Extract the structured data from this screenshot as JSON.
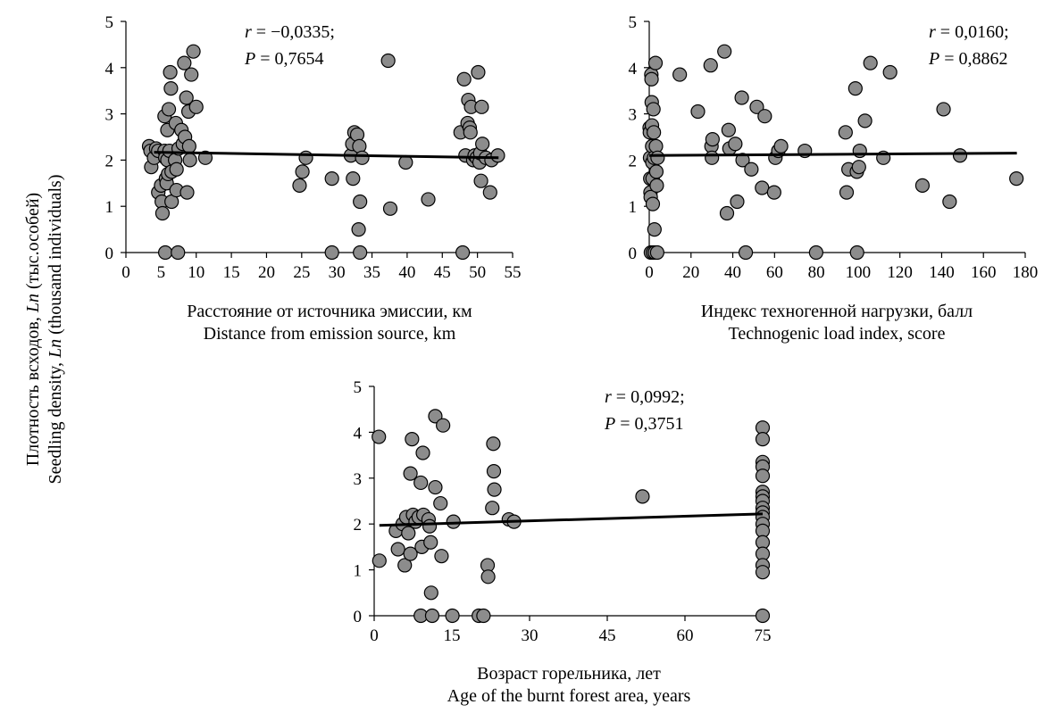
{
  "figure": {
    "shared_ylabel_line1": "Плотность всходов, Ln (тыс.особей)",
    "shared_ylabel_line2": "Seedling density, Ln (thousand individuals)"
  },
  "chart_data": [
    {
      "type": "scatter",
      "xlabel_line1": "Расстояние от источника эмиссии, км",
      "xlabel_line2": "Distance from emission source, km",
      "stat_r": "r = −0,0335;",
      "stat_p": "P = 0,7654",
      "xlim": [
        0,
        55
      ],
      "ylim": [
        0,
        5
      ],
      "xticks": [
        0,
        5,
        10,
        15,
        20,
        25,
        30,
        35,
        40,
        45,
        50,
        55
      ],
      "yticks": [
        0,
        1,
        2,
        3,
        4,
        5
      ],
      "trend": {
        "x": [
          4,
          53
        ],
        "y": [
          2.17,
          2.05
        ]
      },
      "points": [
        [
          3.3,
          2.3
        ],
        [
          3.5,
          2.2
        ],
        [
          3.6,
          1.85
        ],
        [
          4.0,
          2.05
        ],
        [
          4.3,
          2.25
        ],
        [
          4.6,
          2.2
        ],
        [
          4.6,
          1.3
        ],
        [
          5.0,
          1.45
        ],
        [
          5.1,
          1.1
        ],
        [
          5.2,
          0.85
        ],
        [
          5.5,
          2.2
        ],
        [
          5.5,
          2.95
        ],
        [
          5.6,
          2.05
        ],
        [
          5.7,
          1.6
        ],
        [
          5.8,
          1.5
        ],
        [
          5.9,
          2.0
        ],
        [
          5.9,
          2.65
        ],
        [
          6.0,
          1.7
        ],
        [
          6.1,
          3.1
        ],
        [
          6.2,
          2.2
        ],
        [
          6.3,
          3.9
        ],
        [
          6.4,
          3.55
        ],
        [
          6.5,
          1.75
        ],
        [
          6.5,
          1.1
        ],
        [
          7.0,
          2.0
        ],
        [
          7.1,
          2.8
        ],
        [
          7.2,
          1.8
        ],
        [
          7.2,
          1.35
        ],
        [
          7.5,
          2.25
        ],
        [
          7.9,
          2.65
        ],
        [
          8.1,
          2.35
        ],
        [
          8.3,
          4.1
        ],
        [
          8.4,
          2.5
        ],
        [
          8.6,
          3.35
        ],
        [
          8.7,
          1.3
        ],
        [
          8.9,
          3.05
        ],
        [
          9.0,
          2.3
        ],
        [
          9.1,
          2.0
        ],
        [
          9.3,
          3.85
        ],
        [
          9.6,
          4.35
        ],
        [
          10.0,
          3.15
        ],
        [
          11.3,
          2.05
        ],
        [
          5.6,
          0.0
        ],
        [
          7.4,
          0.0
        ],
        [
          24.7,
          1.45
        ],
        [
          25.1,
          1.75
        ],
        [
          25.6,
          2.05
        ],
        [
          29.3,
          1.6
        ],
        [
          29.3,
          0.0
        ],
        [
          32.0,
          2.1
        ],
        [
          32.2,
          2.35
        ],
        [
          32.3,
          1.6
        ],
        [
          32.5,
          2.6
        ],
        [
          32.9,
          2.55
        ],
        [
          33.1,
          0.5
        ],
        [
          33.2,
          2.3
        ],
        [
          33.3,
          1.1
        ],
        [
          33.3,
          0.0
        ],
        [
          33.6,
          2.05
        ],
        [
          37.3,
          4.15
        ],
        [
          37.6,
          0.95
        ],
        [
          39.8,
          1.95
        ],
        [
          43.0,
          1.15
        ],
        [
          47.6,
          2.6
        ],
        [
          47.9,
          0.0
        ],
        [
          48.1,
          3.75
        ],
        [
          48.3,
          2.1
        ],
        [
          48.6,
          2.8
        ],
        [
          48.7,
          3.3
        ],
        [
          48.9,
          2.7
        ],
        [
          49.0,
          2.6
        ],
        [
          49.1,
          3.15
        ],
        [
          49.4,
          2.0
        ],
        [
          49.6,
          2.1
        ],
        [
          49.9,
          2.05
        ],
        [
          50.1,
          3.9
        ],
        [
          50.3,
          1.95
        ],
        [
          50.4,
          2.15
        ],
        [
          50.5,
          1.55
        ],
        [
          50.6,
          3.15
        ],
        [
          50.7,
          2.35
        ],
        [
          51.2,
          2.05
        ],
        [
          51.8,
          1.3
        ],
        [
          52.0,
          2.0
        ],
        [
          52.9,
          2.1
        ]
      ]
    },
    {
      "type": "scatter",
      "xlabel_line1": "Индекс техногенной нагрузки, балл",
      "xlabel_line2": "Technogenic load index, score",
      "stat_r": "r = 0,0160;",
      "stat_p": "P = 0,8862",
      "xlim": [
        0,
        180
      ],
      "ylim": [
        0,
        5
      ],
      "xticks": [
        0,
        20,
        40,
        60,
        80,
        100,
        120,
        140,
        160,
        180
      ],
      "yticks": [
        0,
        1,
        2,
        3,
        4,
        5
      ],
      "trend": {
        "x": [
          0,
          176
        ],
        "y": [
          2.1,
          2.15
        ]
      },
      "points": [
        [
          0.2,
          2.7
        ],
        [
          0.3,
          2.6
        ],
        [
          0.4,
          2.05
        ],
        [
          0.5,
          1.6
        ],
        [
          0.6,
          1.3
        ],
        [
          0.7,
          1.2
        ],
        [
          0.8,
          0.0
        ],
        [
          1.0,
          3.85
        ],
        [
          1.1,
          3.75
        ],
        [
          1.2,
          3.25
        ],
        [
          1.3,
          2.75
        ],
        [
          1.4,
          2.3
        ],
        [
          1.5,
          1.95
        ],
        [
          1.6,
          1.6
        ],
        [
          1.7,
          1.05
        ],
        [
          1.8,
          0.0
        ],
        [
          2.0,
          3.1
        ],
        [
          2.2,
          2.6
        ],
        [
          2.3,
          2.05
        ],
        [
          2.5,
          0.5
        ],
        [
          2.7,
          0.0
        ],
        [
          3.0,
          4.1
        ],
        [
          3.2,
          2.3
        ],
        [
          3.4,
          1.75
        ],
        [
          3.6,
          1.45
        ],
        [
          3.8,
          0.0
        ],
        [
          4.0,
          2.05
        ],
        [
          14.6,
          3.85
        ],
        [
          23.3,
          3.05
        ],
        [
          29.4,
          4.05
        ],
        [
          29.8,
          2.3
        ],
        [
          30.0,
          2.05
        ],
        [
          30.3,
          2.45
        ],
        [
          36.0,
          4.35
        ],
        [
          37.2,
          0.85
        ],
        [
          38.0,
          2.65
        ],
        [
          38.4,
          2.25
        ],
        [
          41.2,
          2.35
        ],
        [
          42.1,
          1.1
        ],
        [
          44.3,
          3.35
        ],
        [
          44.7,
          2.0
        ],
        [
          46.2,
          0.0
        ],
        [
          48.9,
          1.8
        ],
        [
          51.5,
          3.15
        ],
        [
          54.0,
          1.4
        ],
        [
          55.3,
          2.95
        ],
        [
          59.8,
          1.3
        ],
        [
          60.4,
          2.05
        ],
        [
          61.8,
          2.2
        ],
        [
          63.1,
          2.3
        ],
        [
          74.5,
          2.2
        ],
        [
          79.9,
          0.0
        ],
        [
          94.0,
          2.6
        ],
        [
          94.5,
          1.3
        ],
        [
          95.4,
          1.8
        ],
        [
          98.7,
          3.55
        ],
        [
          99.4,
          1.75
        ],
        [
          99.5,
          0.0
        ],
        [
          100.4,
          1.85
        ],
        [
          100.8,
          2.2
        ],
        [
          103.3,
          2.85
        ],
        [
          105.9,
          4.1
        ],
        [
          112.1,
          2.05
        ],
        [
          115.3,
          3.9
        ],
        [
          130.8,
          1.45
        ],
        [
          140.9,
          3.1
        ],
        [
          143.8,
          1.1
        ],
        [
          148.8,
          2.1
        ],
        [
          175.8,
          1.6
        ]
      ]
    },
    {
      "type": "scatter",
      "xlabel_line1": "Возраст горельника, лет",
      "xlabel_line2": "Age of the burnt forest area, years",
      "stat_r": "r = 0,0992;",
      "stat_p": "P = 0,3751",
      "xlim": [
        0,
        75
      ],
      "ylim": [
        0,
        5
      ],
      "xticks": [
        0,
        15,
        30,
        45,
        60,
        75
      ],
      "yticks": [
        0,
        1,
        2,
        3,
        4,
        5
      ],
      "trend": {
        "x": [
          1,
          75
        ],
        "y": [
          1.97,
          2.22
        ]
      },
      "points": [
        [
          0.9,
          3.9
        ],
        [
          1.0,
          1.2
        ],
        [
          4.2,
          1.85
        ],
        [
          4.6,
          1.45
        ],
        [
          5.5,
          2.0
        ],
        [
          5.9,
          1.1
        ],
        [
          6.2,
          2.15
        ],
        [
          6.6,
          1.8
        ],
        [
          7.0,
          3.1
        ],
        [
          7.0,
          1.35
        ],
        [
          7.3,
          3.85
        ],
        [
          7.5,
          2.2
        ],
        [
          8.0,
          2.05
        ],
        [
          8.6,
          2.15
        ],
        [
          9.0,
          2.9
        ],
        [
          9.0,
          0.0
        ],
        [
          9.2,
          1.5
        ],
        [
          9.4,
          3.55
        ],
        [
          9.5,
          2.2
        ],
        [
          10.5,
          2.1
        ],
        [
          10.7,
          1.95
        ],
        [
          10.9,
          1.6
        ],
        [
          11.0,
          0.5
        ],
        [
          11.2,
          0.0
        ],
        [
          11.8,
          4.35
        ],
        [
          11.8,
          2.8
        ],
        [
          12.8,
          2.45
        ],
        [
          13.0,
          1.3
        ],
        [
          13.3,
          4.15
        ],
        [
          15.1,
          0.0
        ],
        [
          15.3,
          2.05
        ],
        [
          20.2,
          0.0
        ],
        [
          21.1,
          0.0
        ],
        [
          21.9,
          1.1
        ],
        [
          22.0,
          0.85
        ],
        [
          22.8,
          2.35
        ],
        [
          23.0,
          3.75
        ],
        [
          23.1,
          3.15
        ],
        [
          23.2,
          2.75
        ],
        [
          26.0,
          2.1
        ],
        [
          27.0,
          2.05
        ],
        [
          51.8,
          2.6
        ],
        [
          75,
          4.1
        ],
        [
          75,
          3.85
        ],
        [
          75,
          3.35
        ],
        [
          75,
          3.25
        ],
        [
          75,
          3.05
        ],
        [
          75,
          2.7
        ],
        [
          75,
          2.6
        ],
        [
          75,
          2.5
        ],
        [
          75,
          2.35
        ],
        [
          75,
          2.25
        ],
        [
          75,
          2.15
        ],
        [
          75,
          2.0
        ],
        [
          75,
          1.85
        ],
        [
          75,
          1.6
        ],
        [
          75,
          1.35
        ],
        [
          75,
          1.1
        ],
        [
          75,
          0.95
        ],
        [
          75,
          0.0
        ]
      ]
    }
  ]
}
